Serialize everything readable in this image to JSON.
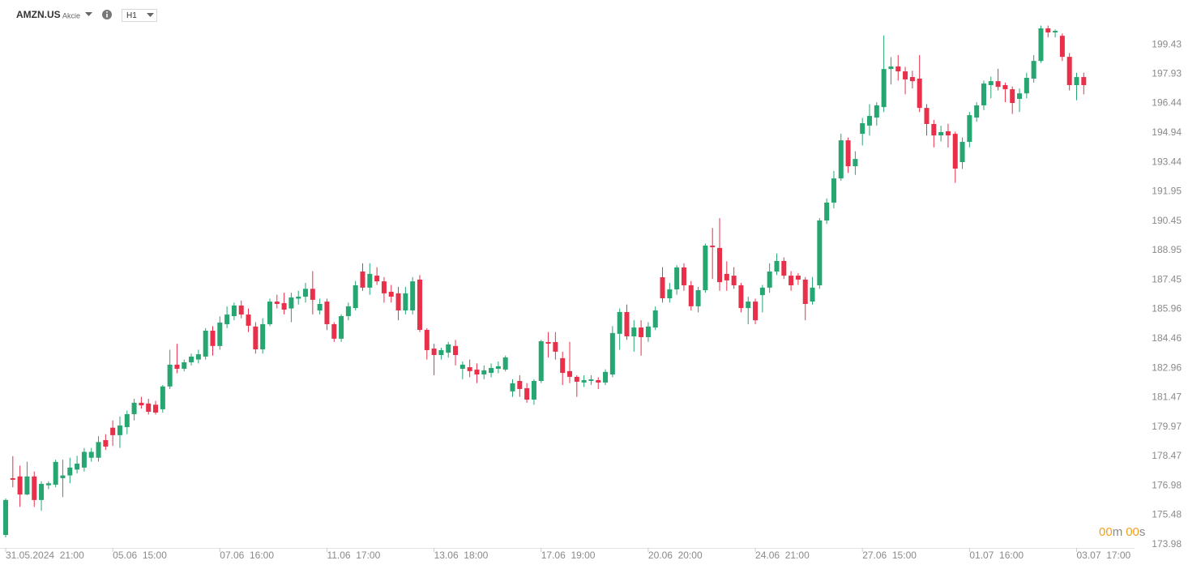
{
  "header": {
    "symbol": "AMZN.US",
    "asset_class": "Akcie",
    "timeframe": "H1"
  },
  "countdown": {
    "minutes": "00",
    "minutes_unit": "m",
    "seconds": "00",
    "seconds_unit": "s"
  },
  "chart_data": {
    "type": "candlestick",
    "up_color": "#26a671",
    "down_color": "#e8304a",
    "categories": [
      "31.05.2024  21:00",
      null,
      null,
      null,
      null,
      null,
      null,
      null,
      null,
      null,
      null,
      null,
      null,
      null,
      null,
      "05.06  15:00",
      null,
      null,
      null,
      null,
      null,
      null,
      null,
      null,
      null,
      null,
      null,
      null,
      null,
      null,
      "07.06  16:00",
      null,
      null,
      null,
      null,
      null,
      null,
      null,
      null,
      null,
      null,
      null,
      null,
      null,
      null,
      "11.06  17:00",
      null,
      null,
      null,
      null,
      null,
      null,
      null,
      null,
      null,
      null,
      null,
      null,
      null,
      null,
      "13.06  18:00",
      null,
      null,
      null,
      null,
      null,
      null,
      null,
      null,
      null,
      null,
      null,
      null,
      null,
      null,
      "17.06  19:00",
      null,
      null,
      null,
      null,
      null,
      null,
      null,
      null,
      null,
      null,
      null,
      null,
      null,
      null,
      "20.06  20:00",
      null,
      null,
      null,
      null,
      null,
      null,
      null,
      null,
      null,
      null,
      null,
      null,
      null,
      null,
      "24.06  21:00",
      null,
      null,
      null,
      null,
      null,
      null,
      null,
      null,
      null,
      null,
      null,
      null,
      null,
      null,
      "27.06  15:00",
      null,
      null,
      null,
      null,
      null,
      null,
      null,
      null,
      null,
      null,
      null,
      null,
      null,
      null,
      "01.07  16:00",
      null,
      null,
      null,
      null,
      null,
      null,
      null,
      null,
      null,
      null,
      null,
      null,
      null,
      null,
      "03.07  17:00",
      null
    ],
    "open": [
      174.47,
      177.36,
      177.45,
      176.53,
      177.45,
      176.25,
      177.0,
      177.03,
      177.36,
      177.5,
      177.8,
      177.9,
      178.4,
      178.4,
      179.3,
      179.93,
      179.55,
      179.96,
      180.62,
      181.2,
      181.16,
      181.1,
      180.87,
      182.03,
      183.14,
      182.93,
      183.26,
      183.4,
      183.55,
      184.87,
      184.09,
      185.2,
      185.61,
      186.15,
      185.69,
      185.08,
      183.92,
      185.2,
      186.35,
      186.27,
      186.0,
      186.5,
      186.6,
      187.0,
      185.9,
      186.35,
      185.2,
      184.46,
      185.61,
      186.02,
      187.88,
      187.06,
      187.67,
      187.38,
      186.85,
      186.77,
      185.9,
      185.9,
      187.47,
      184.91,
      183.96,
      183.63,
      183.75,
      184.09,
      182.93,
      183.01,
      182.89,
      182.64,
      182.72,
      182.93,
      182.89,
      181.78,
      182.31,
      181.94,
      181.36,
      182.31,
      184.29,
      184.29,
      183.47,
      182.81,
      182.52,
      182.23,
      182.31,
      182.35,
      182.23,
      182.64,
      184.71,
      185.82,
      184.58,
      185.03,
      184.54,
      185.03,
      187.59,
      186.52,
      186.97,
      188.09,
      187.18,
      186.11,
      186.93,
      189.2,
      189.08,
      187.76,
      187.67,
      187.18,
      186.02,
      186.35,
      186.68,
      187.06,
      187.88,
      188.42,
      187.67,
      187.67,
      187.47,
      186.35,
      187.18,
      190.48,
      191.39,
      192.62,
      194.56,
      193.24,
      194.89,
      195.31,
      195.72,
      196.25,
      198.19,
      198.32,
      198.07,
      197.78,
      197.7,
      196.21,
      195.39,
      194.81,
      195.02,
      194.89,
      193.45,
      194.48,
      195.72,
      196.34,
      197.37,
      197.57,
      197.37,
      197.16,
      196.67,
      196.95,
      197.7,
      198.6,
      200.26,
      200.05,
      199.88,
      198.81,
      197.37,
      197.78
    ],
    "high": [
      176.33,
      178.48,
      178.0,
      178.2,
      177.7,
      177.2,
      177.2,
      178.3,
      178.3,
      178.4,
      178.5,
      178.9,
      178.9,
      179.5,
      179.6,
      180.3,
      180.5,
      180.8,
      181.4,
      181.5,
      181.4,
      181.3,
      182.1,
      183.9,
      184.2,
      183.4,
      183.7,
      183.9,
      185.0,
      185.1,
      185.6,
      186.1,
      186.3,
      186.4,
      186.0,
      185.3,
      185.5,
      186.5,
      186.7,
      186.8,
      186.8,
      186.9,
      187.3,
      187.9,
      186.5,
      186.5,
      185.3,
      185.7,
      186.3,
      187.4,
      188.3,
      188.3,
      188.1,
      187.6,
      187.2,
      187.1,
      187.1,
      187.6,
      187.7,
      185.0,
      184.2,
      184.0,
      184.3,
      184.4,
      183.3,
      183.4,
      183.2,
      183.1,
      183.2,
      183.3,
      183.6,
      182.4,
      182.6,
      182.2,
      182.4,
      184.4,
      184.8,
      184.8,
      183.8,
      184.3,
      182.6,
      182.6,
      182.6,
      182.5,
      182.9,
      185.1,
      186.0,
      186.2,
      185.4,
      185.4,
      185.3,
      186.1,
      188.1,
      187.3,
      188.2,
      188.3,
      187.4,
      187.1,
      189.3,
      190.1,
      190.6,
      188.4,
      188.1,
      187.3,
      186.6,
      186.5,
      187.2,
      188.3,
      188.8,
      188.6,
      187.9,
      187.8,
      187.6,
      187.6,
      190.6,
      191.6,
      193.0,
      194.9,
      194.7,
      194.0,
      195.7,
      196.4,
      196.5,
      199.9,
      198.8,
      198.9,
      198.3,
      198.1,
      198.9,
      196.4,
      195.6,
      195.3,
      195.4,
      195.0,
      194.7,
      196.0,
      196.5,
      197.6,
      197.8,
      198.2,
      197.5,
      197.3,
      197.2,
      198.0,
      198.9,
      200.4,
      200.4,
      200.2,
      200.0,
      199.0,
      198.0,
      198.0
    ],
    "low": [
      174.35,
      176.9,
      175.9,
      176.5,
      175.9,
      175.7,
      176.8,
      176.9,
      176.4,
      177.1,
      177.6,
      177.7,
      178.2,
      178.2,
      178.8,
      179.0,
      178.9,
      179.6,
      180.3,
      180.9,
      180.6,
      180.6,
      180.7,
      181.9,
      182.7,
      182.8,
      183.1,
      183.2,
      183.4,
      183.6,
      183.9,
      185.0,
      185.4,
      185.5,
      184.8,
      183.7,
      183.7,
      185.1,
      186.0,
      185.7,
      185.3,
      186.2,
      186.3,
      185.7,
      185.7,
      184.9,
      184.3,
      184.3,
      185.4,
      185.9,
      186.9,
      186.7,
      187.2,
      186.3,
      186.3,
      185.4,
      185.7,
      185.7,
      184.8,
      183.4,
      182.6,
      183.4,
      183.5,
      183.1,
      182.4,
      182.5,
      182.2,
      182.4,
      182.5,
      182.7,
      182.8,
      181.5,
      181.5,
      181.2,
      181.1,
      182.2,
      183.5,
      183.4,
      182.1,
      182.2,
      181.5,
      182.0,
      182.1,
      181.9,
      182.1,
      182.5,
      183.9,
      184.4,
      183.8,
      183.6,
      184.3,
      184.9,
      186.3,
      186.3,
      186.7,
      186.9,
      185.9,
      185.8,
      186.8,
      187.5,
      186.9,
      186.9,
      187.0,
      185.8,
      185.2,
      185.2,
      185.8,
      186.8,
      187.7,
      187.5,
      186.9,
      187.2,
      185.4,
      186.2,
      187.0,
      190.3,
      191.1,
      192.5,
      192.9,
      192.8,
      194.3,
      194.8,
      195.3,
      196.0,
      197.4,
      197.6,
      196.9,
      197.2,
      196.0,
      194.8,
      194.2,
      194.5,
      194.2,
      192.4,
      193.1,
      194.2,
      195.5,
      196.1,
      196.7,
      197.1,
      196.5,
      195.9,
      196.0,
      196.7,
      197.5,
      198.5,
      199.8,
      199.8,
      198.6,
      197.1,
      196.6,
      196.9
    ],
    "close": [
      176.25,
      177.28,
      176.53,
      177.45,
      176.25,
      177.07,
      177.1,
      178.19,
      177.5,
      177.9,
      178.1,
      178.7,
      178.7,
      179.2,
      178.97,
      179.55,
      180.04,
      180.62,
      181.2,
      181.07,
      180.74,
      180.7,
      182.03,
      183.14,
      182.93,
      183.26,
      183.55,
      183.67,
      184.87,
      184.09,
      185.28,
      185.69,
      186.15,
      185.69,
      185.12,
      183.92,
      185.2,
      186.35,
      186.23,
      185.94,
      186.56,
      186.6,
      187.0,
      186.44,
      186.23,
      185.2,
      184.46,
      185.61,
      186.11,
      187.18,
      187.06,
      187.76,
      187.38,
      186.77,
      186.6,
      185.9,
      186.77,
      187.38,
      184.91,
      183.88,
      183.63,
      183.88,
      184.17,
      183.63,
      183.14,
      182.81,
      182.64,
      182.85,
      182.97,
      183.06,
      183.51,
      182.19,
      181.9,
      181.36,
      182.31,
      184.33,
      184.21,
      183.8,
      182.72,
      182.52,
      182.27,
      182.35,
      182.39,
      182.23,
      182.77,
      184.75,
      185.82,
      184.58,
      185.03,
      184.54,
      185.08,
      185.9,
      186.52,
      186.97,
      188.09,
      187.18,
      186.11,
      186.93,
      189.2,
      189.12,
      187.34,
      187.43,
      187.18,
      186.02,
      186.35,
      185.4,
      187.06,
      187.88,
      188.42,
      187.67,
      187.18,
      187.47,
      186.23,
      187.06,
      190.48,
      191.39,
      192.62,
      194.56,
      193.24,
      193.61,
      195.43,
      195.8,
      196.34,
      198.19,
      198.32,
      198.07,
      197.66,
      197.57,
      196.21,
      195.39,
      194.81,
      194.98,
      194.81,
      193.12,
      194.48,
      195.84,
      196.34,
      197.45,
      197.57,
      197.28,
      197.16,
      196.46,
      196.95,
      197.74,
      198.6,
      200.26,
      200.05,
      200.13,
      198.81,
      197.37,
      197.78,
      197.37
    ],
    "ylim": [
      173.81,
      201.29
    ],
    "yticks": [
      173.98,
      175.48,
      176.98,
      178.47,
      179.97,
      181.47,
      182.96,
      184.46,
      185.96,
      187.45,
      188.95,
      190.45,
      191.95,
      193.44,
      194.94,
      196.44,
      197.93,
      199.43
    ]
  }
}
